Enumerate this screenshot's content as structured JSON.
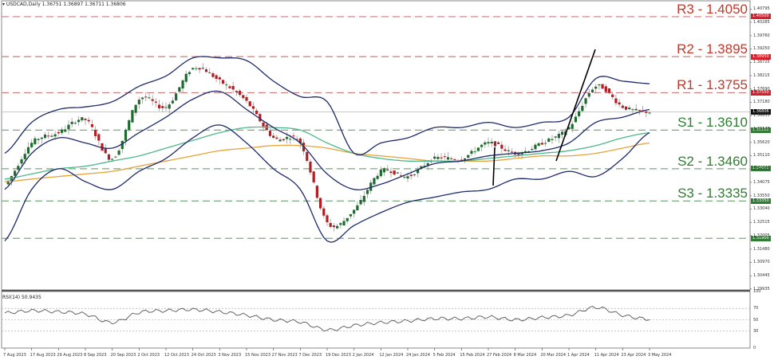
{
  "header": {
    "symbol": "USDCAD,Daily",
    "ohlc": "1.36751 1.36897 1.36711 1.36806",
    "full": "USDCAD,Daily  1.36751 1.36897 1.36711 1.36806"
  },
  "rsi_header": "RSI(14) 50.9435",
  "levels": [
    {
      "name": "R3",
      "label": "R3 - 1.4050",
      "price": 1.405,
      "color": "#c0392b",
      "badge": "1.40500"
    },
    {
      "name": "R2",
      "label": "R2 - 1.3895",
      "price": 1.3895,
      "color": "#c0392b",
      "badge": "1.38950"
    },
    {
      "name": "R1",
      "label": "R1 - 1.3755",
      "price": 1.3755,
      "color": "#c0392b",
      "badge": "1.37550"
    },
    {
      "name": "S1",
      "label": "S1 - 1.3610",
      "price": 1.361,
      "color": "#2e7d32",
      "badge": "1.36100"
    },
    {
      "name": "S2",
      "label": "S2 - 1.3460",
      "price": 1.346,
      "color": "#2e7d32",
      "badge": "1.34600"
    },
    {
      "name": "S3",
      "label": "S3 - 1.3335",
      "price": 1.3335,
      "color": "#2e7d32",
      "badge": "1.33350"
    },
    {
      "name": "S4",
      "label": "",
      "price": 1.319,
      "color": "#2e7d32",
      "badge": "1.31900"
    }
  ],
  "current_price_badge": "1.36806",
  "price_axis": [
    "1.40795",
    "1.40285",
    "1.39760",
    "1.39250",
    "1.38725",
    "1.38215",
    "1.37690",
    "1.37180",
    "1.36655",
    "1.36145",
    "1.35620",
    "1.35110",
    "1.34585",
    "1.34075",
    "1.33550",
    "1.33040",
    "1.32515",
    "1.32005",
    "1.31480",
    "1.30970",
    "1.30445",
    "1.29935"
  ],
  "rsi_axis": [
    "100",
    "70",
    "50",
    "30",
    "0"
  ],
  "dates": [
    "7 Aug 2023",
    "17 Aug 2023",
    "29 Aug 2023",
    "8 Sep 2023",
    "20 Sep 2023",
    "2 Oct 2023",
    "12 Oct 2023",
    "24 Oct 2023",
    "3 Nov 2023",
    "15 Nov 2023",
    "27 Nov 2023",
    "7 Dec 2023",
    "19 Dec 2023",
    "2 Jan 2024",
    "12 Jan 2024",
    "24 Jan 2024",
    "5 Feb 2024",
    "15 Feb 2024",
    "27 Feb 2024",
    "8 Mar 2024",
    "20 Mar 2024",
    "1 Apr 2024",
    "11 Apr 2024",
    "23 Apr 2024",
    "3 May 2024"
  ],
  "colors": {
    "bull": "#1e6b2e",
    "bear": "#b01e23",
    "bollinger": "#1f2a6b",
    "ma_fast": "#4cb88a",
    "ma_slow": "#e8a33a",
    "resistance": "#c97b7b",
    "support": "#7fa982"
  },
  "chart_data": {
    "type": "candlestick",
    "title": "USDCAD, Daily",
    "subtitle": "O 1.36751 H 1.36897 L 1.36711 C 1.36806",
    "xlabel": "",
    "ylabel": "",
    "ylim": [
      1.299,
      1.409
    ],
    "grid": false,
    "x": [
      "7 Aug 2023",
      "17 Aug 2023",
      "29 Aug 2023",
      "8 Sep 2023",
      "20 Sep 2023",
      "2 Oct 2023",
      "12 Oct 2023",
      "24 Oct 2023",
      "3 Nov 2023",
      "15 Nov 2023",
      "27 Nov 2023",
      "7 Dec 2023",
      "19 Dec 2023",
      "2 Jan 2024",
      "12 Jan 2024",
      "24 Jan 2024",
      "5 Feb 2024",
      "15 Feb 2024",
      "27 Feb 2024",
      "8 Mar 2024",
      "20 Mar 2024",
      "1 Apr 2024",
      "11 Apr 2024",
      "23 Apr 2024",
      "3 May 2024"
    ],
    "series": [
      {
        "name": "Close (approx)",
        "values": [
          1.34,
          1.356,
          1.36,
          1.365,
          1.35,
          1.373,
          1.37,
          1.385,
          1.38,
          1.372,
          1.358,
          1.356,
          1.325,
          1.33,
          1.345,
          1.343,
          1.35,
          1.35,
          1.356,
          1.352,
          1.356,
          1.362,
          1.378,
          1.37,
          1.368
        ]
      },
      {
        "name": "Bollinger Upper",
        "values": [
          1.352,
          1.364,
          1.369,
          1.37,
          1.372,
          1.378,
          1.382,
          1.389,
          1.389,
          1.388,
          1.38,
          1.374,
          1.372,
          1.352,
          1.356,
          1.358,
          1.362,
          1.362,
          1.364,
          1.362,
          1.364,
          1.366,
          1.381,
          1.38,
          1.379
        ]
      },
      {
        "name": "Bollinger Middle",
        "values": [
          1.338,
          1.352,
          1.358,
          1.356,
          1.354,
          1.36,
          1.366,
          1.373,
          1.376,
          1.369,
          1.362,
          1.356,
          1.344,
          1.338,
          1.34,
          1.344,
          1.348,
          1.349,
          1.351,
          1.352,
          1.353,
          1.356,
          1.364,
          1.366,
          1.369
        ]
      },
      {
        "name": "Bollinger Lower",
        "values": [
          1.318,
          1.338,
          1.346,
          1.341,
          1.338,
          1.345,
          1.35,
          1.358,
          1.363,
          1.356,
          1.346,
          1.338,
          1.318,
          1.324,
          1.329,
          1.333,
          1.335,
          1.337,
          1.338,
          1.342,
          1.342,
          1.345,
          1.343,
          1.35,
          1.36
        ]
      },
      {
        "name": "MA fast (green)",
        "values": [
          1.342,
          1.344,
          1.346,
          1.347,
          1.349,
          1.351,
          1.354,
          1.357,
          1.36,
          1.362,
          1.362,
          1.361,
          1.356,
          1.352,
          1.35,
          1.349,
          1.349,
          1.349,
          1.35,
          1.351,
          1.352,
          1.353,
          1.355,
          1.358,
          1.36
        ]
      },
      {
        "name": "MA slow (orange)",
        "values": [
          1.341,
          1.342,
          1.343,
          1.344,
          1.345,
          1.347,
          1.349,
          1.351,
          1.353,
          1.354,
          1.355,
          1.355,
          1.354,
          1.352,
          1.351,
          1.35,
          1.349,
          1.349,
          1.349,
          1.35,
          1.351,
          1.351,
          1.352,
          1.354,
          1.356
        ]
      }
    ],
    "horizontal_lines": [
      {
        "label": "R3 - 1.4050",
        "value": 1.405
      },
      {
        "label": "R2 - 1.3895",
        "value": 1.3895
      },
      {
        "label": "R1 - 1.3755",
        "value": 1.3755
      },
      {
        "label": "S1 - 1.3610",
        "value": 1.361
      },
      {
        "label": "S2 - 1.3460",
        "value": 1.346
      },
      {
        "label": "S3 - 1.3335",
        "value": 1.3335
      },
      {
        "label": "",
        "value": 1.319
      }
    ],
    "current_price": 1.36806,
    "indicators": {
      "rsi": {
        "name": "RSI(14)",
        "last": 50.9435,
        "levels": [
          70,
          50,
          30
        ],
        "ylim": [
          0,
          100
        ],
        "values": [
          62,
          66,
          64,
          60,
          45,
          63,
          66,
          68,
          64,
          58,
          50,
          46,
          32,
          40,
          45,
          48,
          52,
          52,
          55,
          50,
          54,
          58,
          72,
          58,
          51
        ]
      }
    }
  }
}
